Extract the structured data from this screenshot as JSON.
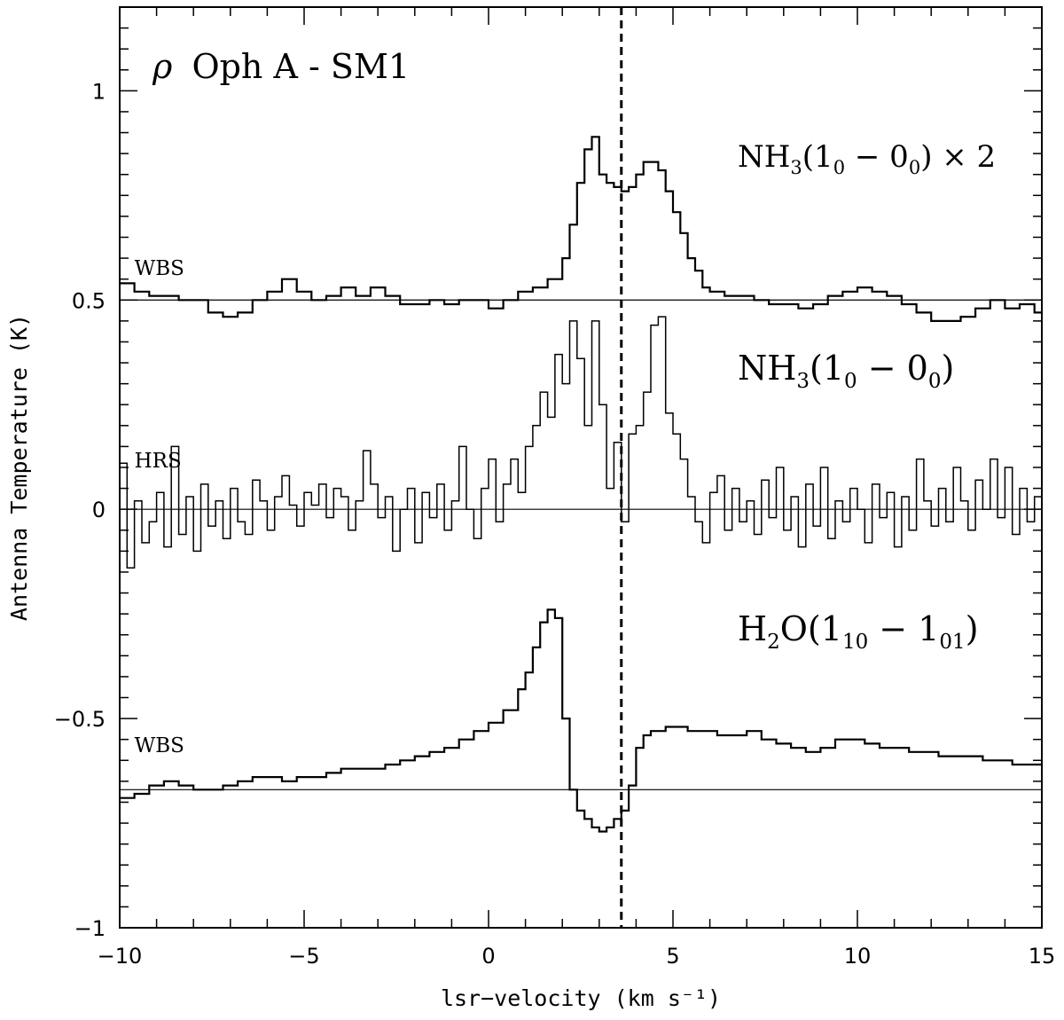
{
  "chart_data": {
    "type": "line",
    "title": "ρ Oph A - SM1",
    "title_symbol": "ρ",
    "title_text": "Oph A - SM1",
    "xlabel": "lsr−velocity (km s⁻¹)",
    "ylabel": "Antenna Temperature (K)",
    "xlim": [
      -10,
      15
    ],
    "ylim": [
      -1,
      1.2
    ],
    "x_ticks": [
      -10,
      -5,
      0,
      5,
      10,
      15
    ],
    "x_tick_labels": [
      "−10",
      "−5",
      "0",
      "5",
      "10",
      "15"
    ],
    "y_ticks": [
      -1,
      -0.5,
      0,
      0.5,
      1
    ],
    "y_tick_labels": [
      "−1",
      "−0.5",
      "0",
      "0.5",
      "1"
    ],
    "vline_x": 3.6,
    "baselines": [
      0.5,
      0,
      -0.67
    ],
    "backend_labels": [
      {
        "text": "WBS",
        "x": -9.6,
        "y": 0.56
      },
      {
        "text": "HRS",
        "x": -9.6,
        "y": 0.1
      },
      {
        "text": "WBS",
        "x": -9.6,
        "y": -0.58
      }
    ],
    "line_labels": [
      {
        "name": "NH3 (10 - 00) x 2",
        "x": 6.7,
        "y": 0.83
      },
      {
        "name": "NH3 (10 - 00)",
        "x": 6.7,
        "y": 0.32
      },
      {
        "name": "H2O (110 - 101)",
        "x": 6.7,
        "y": -0.31
      }
    ],
    "series": [
      {
        "name": "NH3 (10 - 00) x 2 (WBS)",
        "style": "step",
        "x": [
          -10,
          -9.6,
          -9.2,
          -8.8,
          -8.4,
          -8,
          -7.6,
          -7.2,
          -6.8,
          -6.4,
          -6,
          -5.6,
          -5.2,
          -4.8,
          -4.4,
          -4,
          -3.6,
          -3.2,
          -2.8,
          -2.4,
          -2,
          -1.6,
          -1.2,
          -0.8,
          -0.4,
          0,
          0.4,
          0.8,
          1.2,
          1.6,
          2,
          2.2,
          2.4,
          2.6,
          2.8,
          3.0,
          3.2,
          3.4,
          3.6,
          3.8,
          4.0,
          4.2,
          4.4,
          4.6,
          4.8,
          5.0,
          5.2,
          5.4,
          5.6,
          5.8,
          6.0,
          6.4,
          6.8,
          7.2,
          7.6,
          8,
          8.4,
          8.8,
          9.2,
          9.6,
          10,
          10.4,
          10.8,
          11.2,
          11.6,
          12,
          12.4,
          12.8,
          13.2,
          13.6,
          14,
          14.4,
          14.8
        ],
        "values": [
          0.54,
          0.52,
          0.51,
          0.51,
          0.5,
          0.5,
          0.47,
          0.46,
          0.47,
          0.5,
          0.52,
          0.55,
          0.52,
          0.5,
          0.51,
          0.53,
          0.51,
          0.53,
          0.51,
          0.49,
          0.49,
          0.5,
          0.49,
          0.5,
          0.5,
          0.48,
          0.5,
          0.52,
          0.53,
          0.55,
          0.6,
          0.68,
          0.78,
          0.86,
          0.89,
          0.8,
          0.78,
          0.77,
          0.76,
          0.77,
          0.8,
          0.83,
          0.83,
          0.81,
          0.76,
          0.71,
          0.66,
          0.6,
          0.57,
          0.53,
          0.52,
          0.51,
          0.51,
          0.5,
          0.49,
          0.49,
          0.48,
          0.49,
          0.51,
          0.52,
          0.53,
          0.52,
          0.51,
          0.49,
          0.47,
          0.45,
          0.45,
          0.46,
          0.48,
          0.5,
          0.48,
          0.49,
          0.47
        ]
      },
      {
        "name": "NH3 (10 - 00) (HRS)",
        "style": "step",
        "x": [
          -10,
          -9.8,
          -9.6,
          -9.4,
          -9.2,
          -9.0,
          -8.8,
          -8.6,
          -8.4,
          -8.2,
          -8.0,
          -7.8,
          -7.6,
          -7.4,
          -7.2,
          -7.0,
          -6.8,
          -6.6,
          -6.4,
          -6.2,
          -6.0,
          -5.8,
          -5.6,
          -5.4,
          -5.2,
          -5.0,
          -4.8,
          -4.6,
          -4.4,
          -4.2,
          -4.0,
          -3.8,
          -3.6,
          -3.4,
          -3.2,
          -3.0,
          -2.8,
          -2.6,
          -2.4,
          -2.2,
          -2.0,
          -1.8,
          -1.6,
          -1.4,
          -1.2,
          -1.0,
          -0.8,
          -0.6,
          -0.4,
          -0.2,
          0.0,
          0.2,
          0.4,
          0.6,
          0.8,
          1.0,
          1.2,
          1.4,
          1.6,
          1.8,
          2.0,
          2.2,
          2.4,
          2.6,
          2.8,
          3.0,
          3.2,
          3.4,
          3.6,
          3.8,
          4.0,
          4.2,
          4.4,
          4.6,
          4.8,
          5.0,
          5.2,
          5.4,
          5.6,
          5.8,
          6.0,
          6.2,
          6.4,
          6.6,
          6.8,
          7.0,
          7.2,
          7.4,
          7.6,
          7.8,
          8.0,
          8.2,
          8.4,
          8.6,
          8.8,
          9.0,
          9.2,
          9.4,
          9.6,
          9.8,
          10.0,
          10.2,
          10.4,
          10.6,
          10.8,
          11.0,
          11.2,
          11.4,
          11.6,
          11.8,
          12.0,
          12.2,
          12.4,
          12.6,
          12.8,
          13.0,
          13.2,
          13.4,
          13.6,
          13.8,
          14.0,
          14.2,
          14.4,
          14.6,
          14.8
        ],
        "values": [
          0.11,
          -0.14,
          0.02,
          -0.08,
          -0.03,
          0.04,
          -0.09,
          0.15,
          -0.06,
          0.03,
          -0.1,
          0.06,
          -0.04,
          0.02,
          -0.07,
          0.05,
          -0.03,
          -0.06,
          0.07,
          0.02,
          -0.05,
          0.03,
          0.08,
          0.01,
          -0.04,
          0.04,
          0.01,
          0.06,
          -0.02,
          0.05,
          0.03,
          -0.05,
          0.02,
          0.14,
          0.06,
          -0.02,
          0.03,
          -0.1,
          0.0,
          0.05,
          -0.08,
          0.04,
          -0.02,
          0.06,
          -0.05,
          0.02,
          0.15,
          0.0,
          -0.07,
          0.05,
          0.12,
          -0.03,
          0.06,
          0.12,
          0.04,
          0.15,
          0.2,
          0.28,
          0.22,
          0.37,
          0.3,
          0.45,
          0.36,
          0.2,
          0.45,
          0.25,
          0.05,
          0.16,
          -0.03,
          0.18,
          0.2,
          0.28,
          0.44,
          0.46,
          0.23,
          0.18,
          0.12,
          0.03,
          -0.03,
          -0.08,
          0.04,
          0.08,
          -0.05,
          0.05,
          -0.03,
          0.02,
          -0.06,
          0.07,
          -0.02,
          0.1,
          -0.05,
          0.03,
          -0.09,
          0.06,
          -0.04,
          0.1,
          -0.07,
          0.02,
          -0.03,
          0.05,
          0.0,
          -0.08,
          0.06,
          -0.02,
          0.04,
          -0.09,
          0.03,
          -0.05,
          0.12,
          0.02,
          -0.04,
          0.05,
          -0.03,
          0.1,
          0.02,
          -0.05,
          0.07,
          0.0,
          0.12,
          -0.02,
          0.1,
          -0.06,
          0.05,
          -0.03,
          0.03
        ]
      },
      {
        "name": "H2O (110 - 101) (WBS)",
        "style": "step",
        "x": [
          -10,
          -9.6,
          -9.2,
          -8.8,
          -8.4,
          -8,
          -7.6,
          -7.2,
          -6.8,
          -6.4,
          -6,
          -5.6,
          -5.2,
          -4.8,
          -4.4,
          -4,
          -3.6,
          -3.2,
          -2.8,
          -2.4,
          -2,
          -1.6,
          -1.2,
          -0.8,
          -0.4,
          0,
          0.4,
          0.8,
          1.0,
          1.2,
          1.4,
          1.6,
          1.8,
          2.0,
          2.2,
          2.4,
          2.6,
          2.8,
          3.0,
          3.2,
          3.4,
          3.6,
          3.8,
          4.0,
          4.2,
          4.4,
          4.6,
          4.8,
          5.0,
          5.4,
          5.8,
          6.2,
          6.6,
          7.0,
          7.4,
          7.8,
          8.2,
          8.6,
          9.0,
          9.4,
          9.8,
          10.2,
          10.6,
          11.0,
          11.4,
          11.8,
          12.2,
          12.6,
          13.0,
          13.4,
          13.8,
          14.2,
          14.6
        ],
        "values": [
          -0.69,
          -0.68,
          -0.66,
          -0.65,
          -0.66,
          -0.67,
          -0.67,
          -0.66,
          -0.65,
          -0.64,
          -0.64,
          -0.65,
          -0.64,
          -0.64,
          -0.63,
          -0.62,
          -0.62,
          -0.62,
          -0.61,
          -0.6,
          -0.59,
          -0.58,
          -0.57,
          -0.55,
          -0.53,
          -0.51,
          -0.48,
          -0.43,
          -0.39,
          -0.33,
          -0.27,
          -0.24,
          -0.26,
          -0.5,
          -0.67,
          -0.72,
          -0.74,
          -0.76,
          -0.77,
          -0.76,
          -0.74,
          -0.72,
          -0.66,
          -0.57,
          -0.54,
          -0.53,
          -0.53,
          -0.52,
          -0.52,
          -0.53,
          -0.53,
          -0.54,
          -0.54,
          -0.53,
          -0.55,
          -0.56,
          -0.57,
          -0.58,
          -0.57,
          -0.55,
          -0.55,
          -0.56,
          -0.57,
          -0.57,
          -0.58,
          -0.58,
          -0.59,
          -0.59,
          -0.59,
          -0.6,
          -0.6,
          -0.61,
          -0.61
        ]
      }
    ]
  }
}
